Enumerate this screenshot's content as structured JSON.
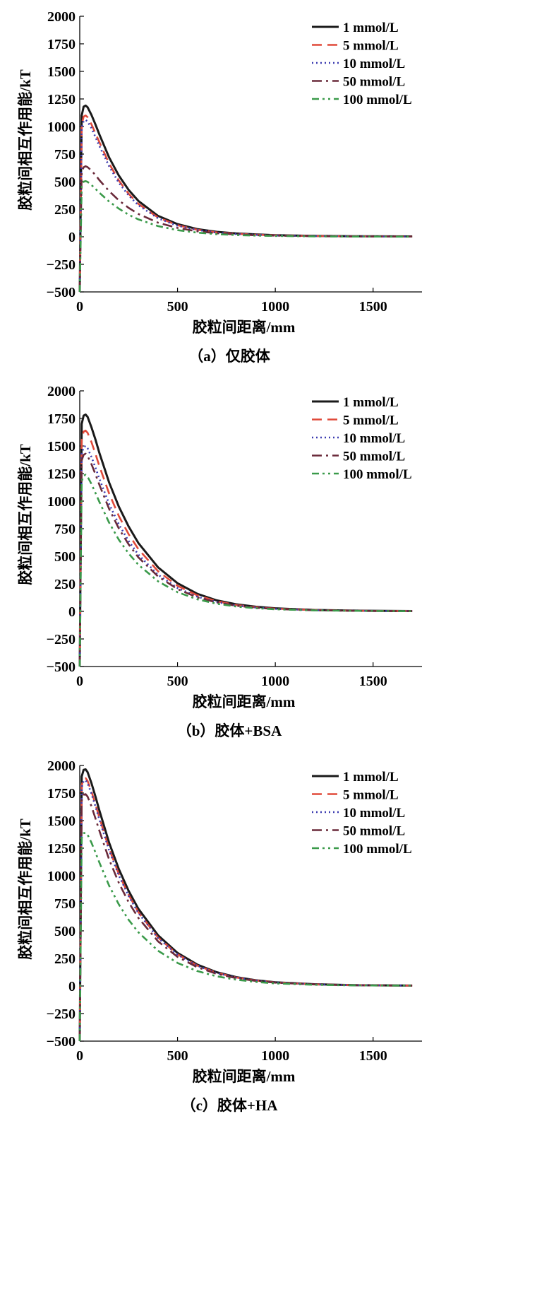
{
  "chart_data": [
    {
      "type": "line",
      "caption": "（a）仅胶体",
      "xlabel": "胶粒间距离/mm",
      "ylabel": "胶粒间相互作用能/kT",
      "xlim": [
        0,
        1750
      ],
      "ylim": [
        -500,
        2000
      ],
      "xticks": [
        "0",
        "500",
        "1000",
        "1500"
      ],
      "yticks": [
        "−500",
        "−250",
        "0",
        "250",
        "500",
        "750",
        "1000",
        "1250",
        "1500",
        "1750",
        "2000"
      ],
      "legend_position": "top-right",
      "series": [
        {
          "name": "1 mmol/L",
          "color": "#1a1a1a",
          "dash": "solid",
          "x": [
            0,
            10,
            20,
            30,
            40,
            60,
            80,
            100,
            150,
            200,
            250,
            300,
            400,
            500,
            600,
            700,
            800,
            900,
            1000,
            1200,
            1400,
            1700
          ],
          "y": [
            -500,
            1100,
            1180,
            1190,
            1175,
            1105,
            1020,
            930,
            720,
            555,
            425,
            325,
            190,
            115,
            70,
            45,
            30,
            22,
            15,
            8,
            5,
            3
          ]
        },
        {
          "name": "5 mmol/L",
          "color": "#e04a3a",
          "dash": "dash",
          "x": [
            0,
            10,
            20,
            30,
            40,
            60,
            80,
            100,
            150,
            200,
            250,
            300,
            400,
            500,
            600,
            700,
            800,
            900,
            1000,
            1200,
            1400,
            1700
          ],
          "y": [
            -500,
            1020,
            1090,
            1100,
            1085,
            1020,
            940,
            860,
            665,
            510,
            390,
            298,
            175,
            105,
            64,
            40,
            27,
            19,
            13,
            7,
            4,
            2
          ]
        },
        {
          "name": "10 mmol/L",
          "color": "#3a3ab0",
          "dash": "dot",
          "x": [
            0,
            10,
            20,
            30,
            40,
            60,
            80,
            100,
            150,
            200,
            250,
            300,
            400,
            500,
            600,
            700,
            800,
            900,
            1000,
            1200,
            1400,
            1700
          ],
          "y": [
            -500,
            990,
            1050,
            1060,
            1045,
            985,
            905,
            825,
            640,
            490,
            375,
            285,
            168,
            100,
            62,
            38,
            25,
            18,
            12,
            7,
            4,
            2
          ]
        },
        {
          "name": "50 mmol/L",
          "color": "#6a2a3a",
          "dash": "dashdot",
          "x": [
            0,
            10,
            20,
            30,
            40,
            60,
            80,
            100,
            150,
            200,
            250,
            300,
            400,
            500,
            600,
            700,
            800,
            900,
            1000,
            1200,
            1400,
            1700
          ],
          "y": [
            -500,
            590,
            630,
            640,
            632,
            600,
            560,
            515,
            415,
            330,
            262,
            207,
            128,
            80,
            50,
            32,
            21,
            14,
            10,
            5,
            3,
            2
          ]
        },
        {
          "name": "100 mmol/L",
          "color": "#3a9a4a",
          "dash": "dashdotdot",
          "x": [
            0,
            10,
            20,
            30,
            40,
            60,
            80,
            100,
            150,
            200,
            250,
            300,
            400,
            500,
            600,
            700,
            800,
            900,
            1000,
            1200,
            1400,
            1700
          ],
          "y": [
            -500,
            460,
            500,
            505,
            498,
            470,
            435,
            400,
            320,
            255,
            200,
            158,
            97,
            60,
            38,
            24,
            16,
            11,
            8,
            4,
            2,
            1
          ]
        }
      ]
    },
    {
      "type": "line",
      "caption": "（b）胶体+BSA",
      "xlabel": "胶粒间距离/mm",
      "ylabel": "胶粒间相互作用能/kT",
      "xlim": [
        0,
        1750
      ],
      "ylim": [
        -500,
        2000
      ],
      "xticks": [
        "0",
        "500",
        "1000",
        "1500"
      ],
      "yticks": [
        "−500",
        "−250",
        "0",
        "250",
        "500",
        "750",
        "1000",
        "1250",
        "1500",
        "1750",
        "2000"
      ],
      "legend_position": "top-right",
      "series": [
        {
          "name": "1 mmol/L",
          "color": "#1a1a1a",
          "dash": "solid",
          "x": [
            0,
            10,
            20,
            30,
            40,
            60,
            80,
            100,
            150,
            200,
            250,
            300,
            400,
            500,
            600,
            700,
            800,
            900,
            1000,
            1200,
            1400,
            1700
          ],
          "y": [
            -500,
            1700,
            1775,
            1785,
            1765,
            1670,
            1560,
            1440,
            1170,
            950,
            770,
            620,
            400,
            255,
            160,
            100,
            64,
            42,
            28,
            13,
            7,
            3
          ]
        },
        {
          "name": "5 mmol/L",
          "color": "#e04a3a",
          "dash": "dash",
          "x": [
            0,
            10,
            20,
            30,
            40,
            60,
            80,
            100,
            150,
            200,
            250,
            300,
            400,
            500,
            600,
            700,
            800,
            900,
            1000,
            1200,
            1400,
            1700
          ],
          "y": [
            -500,
            1560,
            1630,
            1640,
            1620,
            1535,
            1430,
            1320,
            1070,
            865,
            700,
            565,
            365,
            232,
            146,
            92,
            58,
            38,
            25,
            12,
            6,
            3
          ]
        },
        {
          "name": "10 mmol/L",
          "color": "#3a3ab0",
          "dash": "dot",
          "x": [
            0,
            10,
            20,
            30,
            40,
            60,
            80,
            100,
            150,
            200,
            250,
            300,
            400,
            500,
            600,
            700,
            800,
            900,
            1000,
            1200,
            1400,
            1700
          ],
          "y": [
            -500,
            1430,
            1490,
            1500,
            1480,
            1400,
            1305,
            1205,
            975,
            790,
            638,
            515,
            333,
            212,
            134,
            84,
            53,
            35,
            23,
            11,
            6,
            3
          ]
        },
        {
          "name": "50 mmol/L",
          "color": "#6a2a3a",
          "dash": "dashdot",
          "x": [
            0,
            10,
            20,
            30,
            40,
            60,
            80,
            100,
            150,
            200,
            250,
            300,
            400,
            500,
            600,
            700,
            800,
            900,
            1000,
            1200,
            1400,
            1700
          ],
          "y": [
            -500,
            1370,
            1420,
            1430,
            1410,
            1335,
            1245,
            1150,
            930,
            752,
            608,
            490,
            317,
            202,
            128,
            80,
            51,
            33,
            22,
            10,
            5,
            2
          ]
        },
        {
          "name": "100 mmol/L",
          "color": "#3a9a4a",
          "dash": "dashdotdot",
          "x": [
            0,
            10,
            20,
            30,
            40,
            60,
            80,
            100,
            150,
            200,
            250,
            300,
            400,
            500,
            600,
            700,
            800,
            900,
            1000,
            1200,
            1400,
            1700
          ],
          "y": [
            -500,
            1180,
            1230,
            1240,
            1222,
            1155,
            1075,
            995,
            805,
            650,
            525,
            423,
            273,
            174,
            110,
            69,
            44,
            29,
            19,
            9,
            5,
            2
          ]
        }
      ]
    },
    {
      "type": "line",
      "caption": "（c）胶体+HA",
      "xlabel": "胶粒间距离/mm",
      "ylabel": "胶粒间相互作用能/kT",
      "xlim": [
        0,
        1750
      ],
      "ylim": [
        -500,
        2000
      ],
      "xticks": [
        "0",
        "500",
        "1000",
        "1500"
      ],
      "yticks": [
        "−500",
        "−250",
        "0",
        "250",
        "500",
        "750",
        "1000",
        "1250",
        "1500",
        "1750",
        "2000"
      ],
      "legend_position": "top-right",
      "series": [
        {
          "name": "1 mmol/L",
          "color": "#1a1a1a",
          "dash": "solid",
          "x": [
            0,
            10,
            20,
            30,
            40,
            60,
            80,
            100,
            150,
            200,
            250,
            300,
            400,
            500,
            600,
            700,
            800,
            900,
            1000,
            1200,
            1400,
            1700
          ],
          "y": [
            -500,
            1900,
            1960,
            1965,
            1940,
            1840,
            1720,
            1595,
            1300,
            1060,
            862,
            700,
            460,
            300,
            195,
            125,
            80,
            52,
            34,
            16,
            8,
            4
          ]
        },
        {
          "name": "5 mmol/L",
          "color": "#e04a3a",
          "dash": "dash",
          "x": [
            0,
            10,
            20,
            30,
            40,
            60,
            80,
            100,
            150,
            200,
            250,
            300,
            400,
            500,
            600,
            700,
            800,
            900,
            1000,
            1200,
            1400,
            1700
          ],
          "y": [
            -500,
            1820,
            1880,
            1885,
            1860,
            1765,
            1650,
            1530,
            1245,
            1015,
            826,
            670,
            440,
            287,
            186,
            120,
            77,
            50,
            33,
            15,
            8,
            4
          ]
        },
        {
          "name": "10 mmol/L",
          "color": "#3a3ab0",
          "dash": "dot",
          "x": [
            0,
            10,
            20,
            30,
            40,
            60,
            80,
            100,
            150,
            200,
            250,
            300,
            400,
            500,
            600,
            700,
            800,
            900,
            1000,
            1200,
            1400,
            1700
          ],
          "y": [
            -500,
            1800,
            1860,
            1865,
            1840,
            1745,
            1630,
            1512,
            1230,
            1003,
            816,
            662,
            435,
            284,
            184,
            118,
            76,
            49,
            32,
            15,
            8,
            4
          ]
        },
        {
          "name": "50 mmol/L",
          "color": "#6a2a3a",
          "dash": "dashdot",
          "x": [
            0,
            10,
            20,
            30,
            40,
            60,
            80,
            100,
            150,
            200,
            250,
            300,
            400,
            500,
            600,
            700,
            800,
            900,
            1000,
            1200,
            1400,
            1700
          ],
          "y": [
            -500,
            1680,
            1735,
            1740,
            1718,
            1630,
            1522,
            1410,
            1148,
            935,
            760,
            617,
            405,
            264,
            171,
            110,
            71,
            46,
            30,
            14,
            7,
            3
          ]
        },
        {
          "name": "100 mmol/L",
          "color": "#3a9a4a",
          "dash": "dashdotdot",
          "x": [
            0,
            10,
            20,
            30,
            40,
            60,
            80,
            100,
            150,
            200,
            250,
            300,
            400,
            500,
            600,
            700,
            800,
            900,
            1000,
            1200,
            1400,
            1700
          ],
          "y": [
            -500,
            1340,
            1385,
            1390,
            1372,
            1300,
            1212,
            1122,
            910,
            740,
            600,
            487,
            320,
            209,
            136,
            88,
            57,
            37,
            24,
            11,
            6,
            3
          ]
        }
      ]
    }
  ]
}
